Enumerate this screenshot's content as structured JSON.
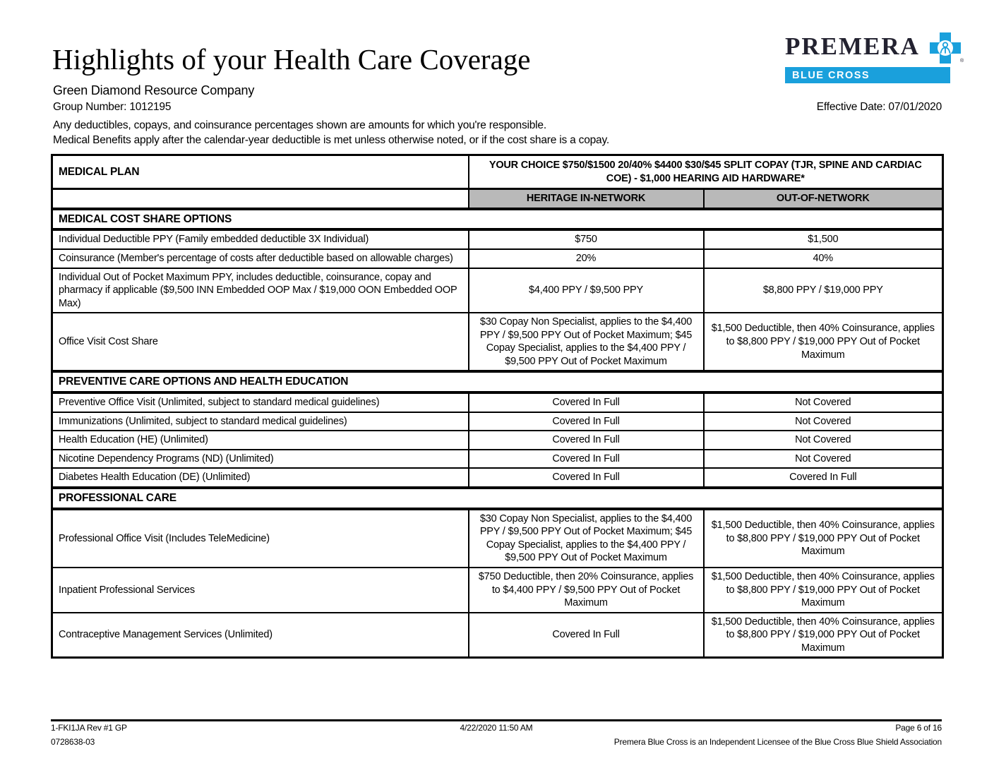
{
  "header": {
    "title": "Highlights of your Health Care Coverage",
    "company": "Green Diamond Resource Company",
    "group_number": "Group Number: 1012195",
    "effective_date": "Effective Date: 07/01/2020",
    "intro_lines": [
      "Any deductibles, copays, and coinsurance percentages shown are amounts for which you're responsible.",
      "Medical Benefits apply after the calendar-year deductible is met unless otherwise noted, or if the cost share is a copay."
    ],
    "logo": {
      "brand": "PREMERA",
      "sub_brand": "BLUE CROSS",
      "registered_mark": "®",
      "blue": "#1aa0dc",
      "brand_color": "#232230",
      "cross_icon": "blue-cross-icon"
    }
  },
  "table": {
    "header_bg": "#b9b9b9",
    "plan_header": {
      "label": "MEDICAL PLAN",
      "plan_name": "YOUR CHOICE $750/$1500 20/40% $4400 $30/$45 SPLIT COPAY (TJR, SPINE AND CARDIAC COE) - $1,000 HEARING AID HARDWARE*"
    },
    "network_columns": [
      "HERITAGE IN-NETWORK",
      "OUT-OF-NETWORK"
    ],
    "sections": [
      {
        "title": "MEDICAL COST SHARE OPTIONS",
        "rows": [
          {
            "label": "Individual Deductible PPY (Family embedded deductible 3X Individual)",
            "in_network": "$750",
            "out_of_network": "$1,500"
          },
          {
            "label": "Coinsurance (Member's percentage of costs after deductible based on allowable charges)",
            "in_network": "20%",
            "out_of_network": "40%"
          },
          {
            "label": "Individual Out of Pocket Maximum PPY, includes deductible, coinsurance, copay and pharmacy if applicable ($9,500 INN Embedded OOP Max / $19,000 OON Embedded OOP Max)",
            "in_network": "$4,400 PPY / $9,500 PPY",
            "out_of_network": "$8,800 PPY / $19,000 PPY"
          },
          {
            "label": "Office Visit Cost Share",
            "in_network": "$30 Copay Non Specialist, applies to the $4,400 PPY / $9,500 PPY Out of Pocket Maximum; $45 Copay Specialist, applies to the $4,400 PPY / $9,500 PPY Out of Pocket Maximum",
            "out_of_network": "$1,500 Deductible, then 40% Coinsurance, applies to $8,800 PPY / $19,000 PPY Out of Pocket Maximum"
          }
        ]
      },
      {
        "title": "PREVENTIVE CARE OPTIONS AND HEALTH EDUCATION",
        "rows": [
          {
            "label": "Preventive Office Visit (Unlimited, subject to standard medical guidelines)",
            "in_network": "Covered In Full",
            "out_of_network": "Not Covered"
          },
          {
            "label": "Immunizations (Unlimited, subject to standard medical guidelines)",
            "in_network": "Covered In Full",
            "out_of_network": "Not Covered"
          },
          {
            "label": "Health Education (HE) (Unlimited)",
            "in_network": "Covered In Full",
            "out_of_network": "Not Covered"
          },
          {
            "label": "Nicotine Dependency Programs (ND) (Unlimited)",
            "in_network": "Covered In Full",
            "out_of_network": "Not Covered"
          },
          {
            "label": "Diabetes Health Education (DE) (Unlimited)",
            "in_network": "Covered In Full",
            "out_of_network": "Covered In Full"
          }
        ]
      },
      {
        "title": "PROFESSIONAL CARE",
        "rows": [
          {
            "label": "Professional Office Visit (Includes TeleMedicine)",
            "in_network": "$30 Copay Non Specialist, applies to the $4,400 PPY / $9,500 PPY Out of Pocket Maximum; $45 Copay Specialist, applies to the $4,400 PPY / $9,500 PPY Out of Pocket Maximum",
            "out_of_network": "$1,500 Deductible, then 40% Coinsurance, applies to $8,800 PPY / $19,000 PPY Out of Pocket Maximum"
          },
          {
            "label": "Inpatient Professional Services",
            "in_network": "$750 Deductible, then 20% Coinsurance, applies to $4,400 PPY / $9,500 PPY Out of Pocket Maximum",
            "out_of_network": "$1,500 Deductible, then 40% Coinsurance, applies to $8,800 PPY / $19,000 PPY Out of Pocket Maximum"
          },
          {
            "label": "Contraceptive Management Services (Unlimited)",
            "in_network": "Covered In Full",
            "out_of_network": "$1,500 Deductible, then 40% Coinsurance, applies to $8,800 PPY / $19,000 PPY Out of Pocket Maximum"
          }
        ]
      }
    ]
  },
  "footer": {
    "form_code": "1-FKI1JA Rev #1  GP",
    "timestamp": "4/22/2020 11:50 AM",
    "page_info": "Page 6 of 16",
    "doc_number": "0728638-03",
    "licensee_note": "Premera Blue Cross is an Independent Licensee of the Blue Cross Blue Shield Association"
  }
}
